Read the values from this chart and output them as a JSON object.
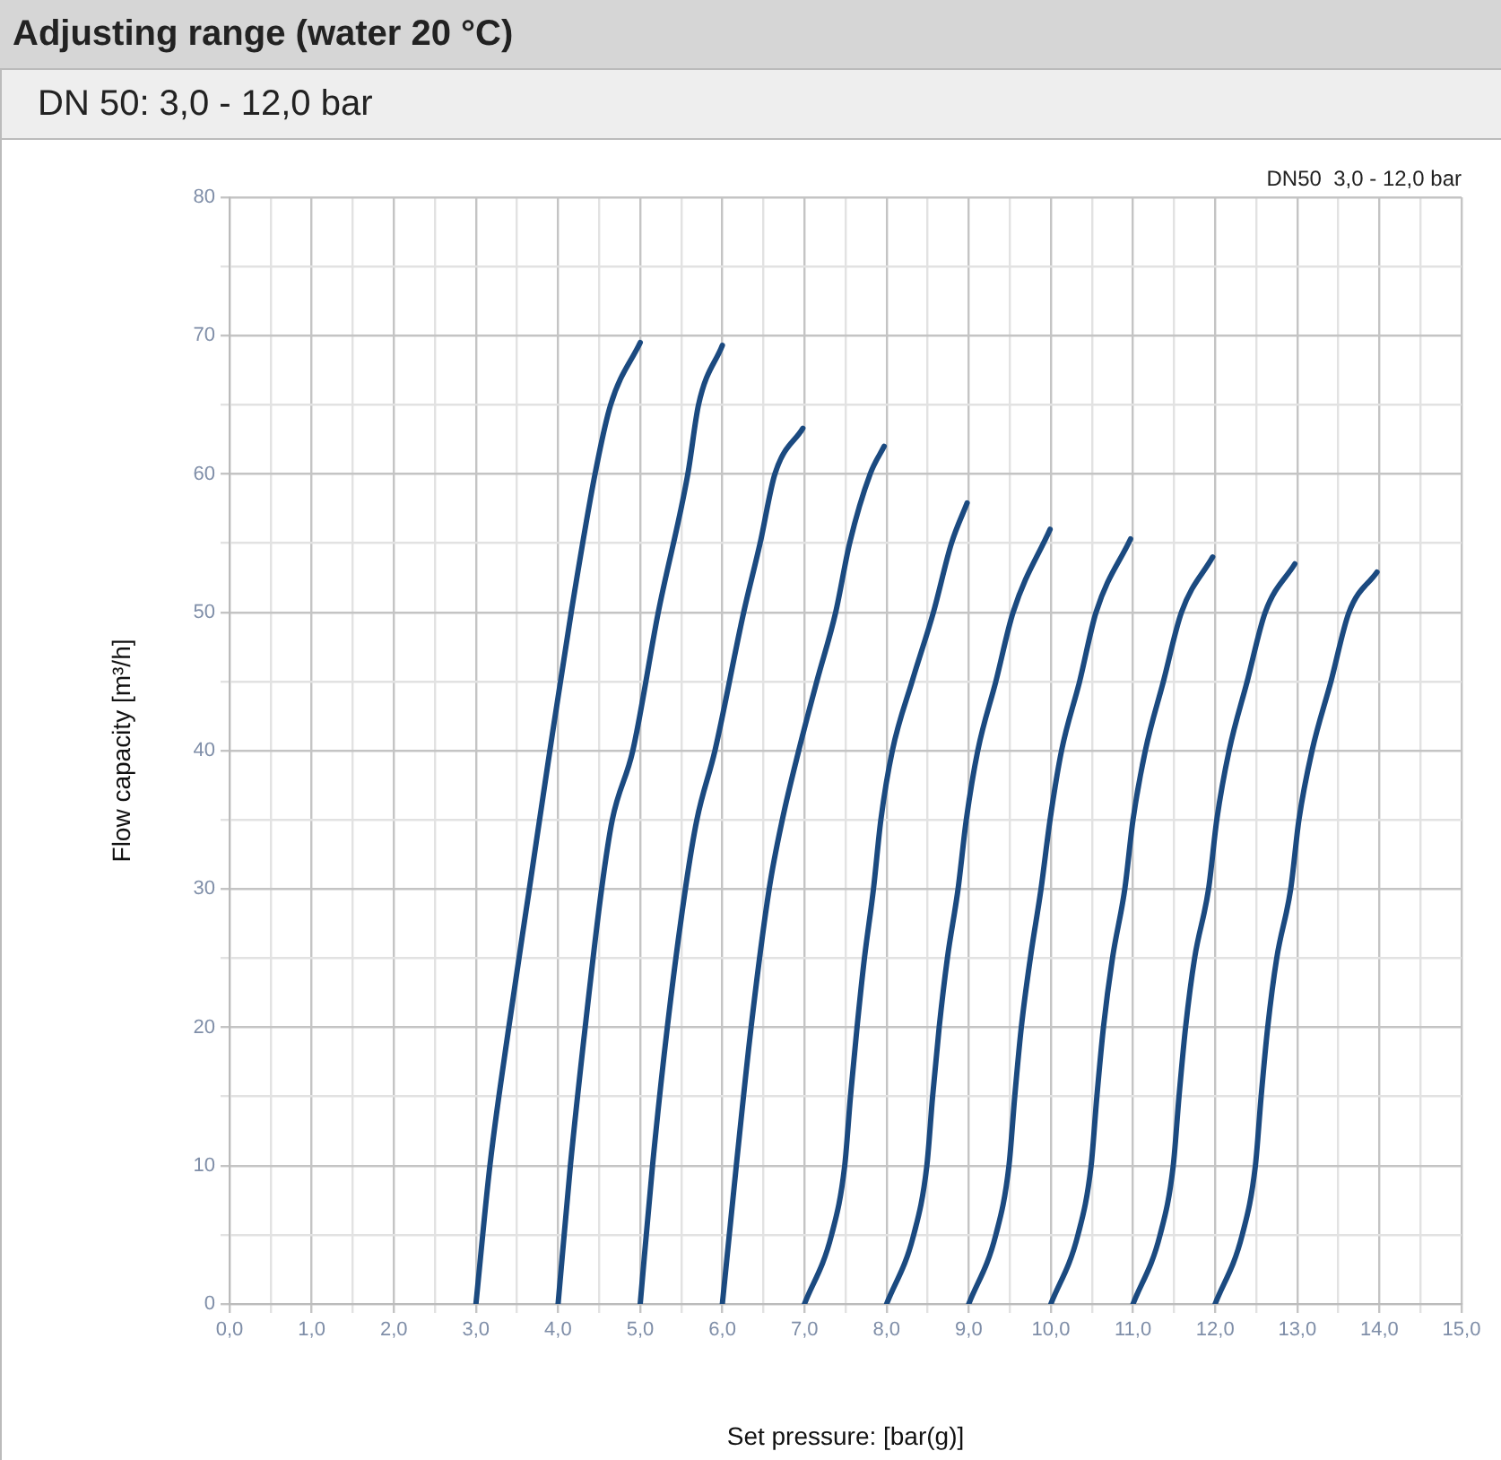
{
  "chart_data": {
    "type": "line",
    "title": "Adjusting range (water 20 °C)",
    "subtitle": "DN 50: 3,0 - 12,0 bar",
    "xlabel": "Set pressure: [bar(g)]",
    "ylabel": "Flow capacity [m³/h]",
    "annotations": [
      "DN50  3,0 - 12,0 bar"
    ],
    "xlim": [
      0,
      15
    ],
    "ylim": [
      0,
      80
    ],
    "xticks": [
      {
        "value": 0,
        "label": "0,0"
      },
      {
        "value": 0.5,
        "label": null
      },
      {
        "value": 1,
        "label": "1,0"
      },
      {
        "value": 1.5,
        "label": null
      },
      {
        "value": 2,
        "label": "2,0"
      },
      {
        "value": 2.5,
        "label": null
      },
      {
        "value": 3,
        "label": "3,0"
      },
      {
        "value": 3.5,
        "label": null
      },
      {
        "value": 4,
        "label": "4,0"
      },
      {
        "value": 4.5,
        "label": null
      },
      {
        "value": 5,
        "label": "5,0"
      },
      {
        "value": 5.5,
        "label": null
      },
      {
        "value": 6,
        "label": "6,0"
      },
      {
        "value": 6.5,
        "label": null
      },
      {
        "value": 7,
        "label": "7,0"
      },
      {
        "value": 7.5,
        "label": null
      },
      {
        "value": 8,
        "label": "8,0"
      },
      {
        "value": 8.5,
        "label": null
      },
      {
        "value": 9,
        "label": "9,0"
      },
      {
        "value": 9.5,
        "label": null
      },
      {
        "value": 10,
        "label": "10,0"
      },
      {
        "value": 10.5,
        "label": null
      },
      {
        "value": 11,
        "label": "11,0"
      },
      {
        "value": 11.5,
        "label": null
      },
      {
        "value": 12,
        "label": "12,0"
      },
      {
        "value": 12.5,
        "label": null
      },
      {
        "value": 13,
        "label": "13,0"
      },
      {
        "value": 13.5,
        "label": null
      },
      {
        "value": 14,
        "label": "14,0"
      },
      {
        "value": 14.5,
        "label": null
      },
      {
        "value": 15,
        "label": "15,0"
      }
    ],
    "yticks": [
      0,
      {
        "value": 5,
        "label": null
      },
      10,
      {
        "value": 15,
        "label": null
      },
      20,
      {
        "value": 25,
        "label": null
      },
      30,
      {
        "value": 35,
        "label": null
      },
      40,
      {
        "value": 45,
        "label": null
      },
      50,
      {
        "value": 55,
        "label": null
      },
      60,
      {
        "value": 65,
        "label": null
      },
      70,
      {
        "value": 75,
        "label": null
      },
      80
    ],
    "grid": true,
    "legend": false,
    "marker": "none",
    "line_style": "solid",
    "series": [
      {
        "color": "#1b4a80",
        "x": [
          3,
          3.17,
          3.4,
          3.65,
          3.9,
          4.16,
          4.45,
          4.64,
          5.0
        ],
        "values": [
          0,
          10,
          20,
          30,
          40,
          50,
          60,
          65,
          69.5
        ]
      },
      {
        "color": "#1b4a80",
        "x": [
          4,
          4.15,
          4.33,
          4.53,
          4.66,
          4.91,
          5.22,
          5.58,
          5.71,
          6.0
        ],
        "values": [
          0,
          10,
          20,
          30,
          35,
          40,
          50,
          60,
          65,
          69.3
        ]
      },
      {
        "color": "#1b4a80",
        "x": [
          5,
          5.15,
          5.33,
          5.55,
          5.69,
          5.91,
          6.26,
          6.46,
          6.64,
          6.98
        ],
        "values": [
          0,
          10,
          20,
          30,
          35,
          40,
          50,
          55,
          60,
          63.3
        ]
      },
      {
        "color": "#1b4a80",
        "x": [
          6,
          6.17,
          6.35,
          6.57,
          6.73,
          6.93,
          7.15,
          7.38,
          7.55,
          7.8,
          7.97
        ],
        "values": [
          0,
          10,
          20,
          30,
          35,
          40,
          45,
          50,
          55,
          60,
          62
        ]
      },
      {
        "color": "#1b4a80",
        "x": [
          7,
          7.33,
          7.49,
          7.56,
          7.64,
          7.73,
          7.84,
          7.93,
          8.07,
          8.31,
          8.57,
          8.79,
          8.98
        ],
        "values": [
          0,
          5,
          10,
          15,
          20,
          25,
          30,
          35,
          40,
          45,
          50,
          55,
          57.9
        ]
      },
      {
        "color": "#1b4a80",
        "x": [
          8,
          8.33,
          8.49,
          8.56,
          8.64,
          8.74,
          8.87,
          8.97,
          9.11,
          9.33,
          9.54,
          9.99
        ],
        "values": [
          0,
          5,
          10,
          15,
          20,
          25,
          30,
          35,
          40,
          45,
          50,
          56
        ]
      },
      {
        "color": "#1b4a80",
        "x": [
          9,
          9.33,
          9.49,
          9.56,
          9.64,
          9.75,
          9.88,
          9.99,
          10.13,
          10.35,
          10.55,
          10.97
        ],
        "values": [
          0,
          5,
          10,
          15,
          20,
          25,
          30,
          35,
          40,
          45,
          50,
          55.3
        ]
      },
      {
        "color": "#1b4a80",
        "x": [
          10,
          10.33,
          10.49,
          10.56,
          10.64,
          10.75,
          10.9,
          11.0,
          11.15,
          11.37,
          11.59,
          11.97
        ],
        "values": [
          0,
          5,
          10,
          15,
          20,
          25,
          30,
          35,
          40,
          45,
          50,
          54
        ]
      },
      {
        "color": "#1b4a80",
        "x": [
          11,
          11.33,
          11.49,
          11.56,
          11.64,
          11.75,
          11.92,
          12.02,
          12.17,
          12.39,
          12.61,
          12.97
        ],
        "values": [
          0,
          5,
          10,
          15,
          20,
          25,
          30,
          35,
          40,
          45,
          50,
          53.5
        ]
      },
      {
        "color": "#1b4a80",
        "x": [
          12,
          12.33,
          12.49,
          12.56,
          12.64,
          12.75,
          12.92,
          13.02,
          13.18,
          13.41,
          13.63,
          13.97
        ],
        "values": [
          0,
          5,
          10,
          15,
          20,
          25,
          30,
          35,
          40,
          45,
          50,
          52.9
        ]
      }
    ]
  }
}
